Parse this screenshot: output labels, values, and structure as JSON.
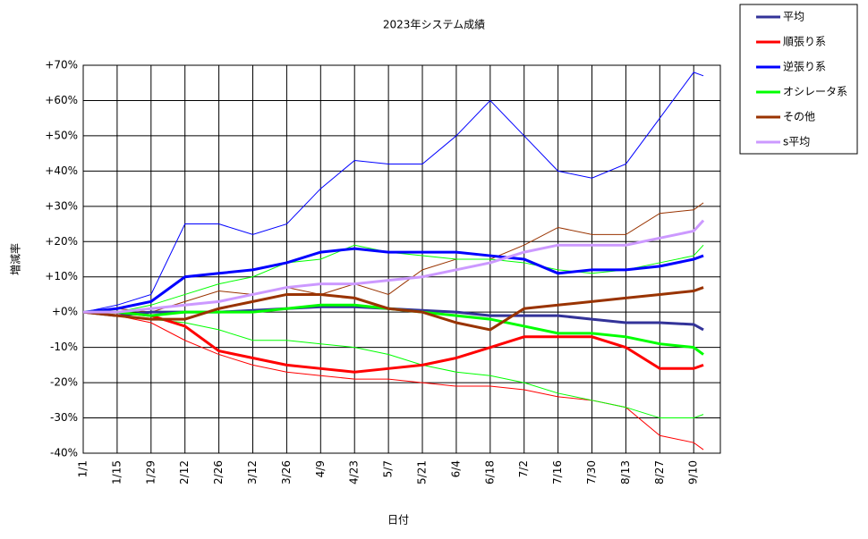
{
  "chart_data": {
    "type": "line",
    "title": "2023年システム成績",
    "xlabel": "日付",
    "ylabel": "増減率",
    "x": [
      0,
      14,
      28,
      42,
      56,
      70,
      84,
      98,
      112,
      126,
      140,
      154,
      168,
      182,
      196,
      210,
      224,
      238,
      252,
      256
    ],
    "xlim": [
      0,
      263
    ],
    "xticks": [
      {
        "value": 0,
        "label": "1/1"
      },
      {
        "value": 14,
        "label": "1/15"
      },
      {
        "value": 28,
        "label": "1/29"
      },
      {
        "value": 42,
        "label": "2/12"
      },
      {
        "value": 56,
        "label": "2/26"
      },
      {
        "value": 70,
        "label": "3/12"
      },
      {
        "value": 84,
        "label": "3/26"
      },
      {
        "value": 98,
        "label": "4/9"
      },
      {
        "value": 112,
        "label": "4/23"
      },
      {
        "value": 126,
        "label": "5/7"
      },
      {
        "value": 140,
        "label": "5/21"
      },
      {
        "value": 154,
        "label": "6/4"
      },
      {
        "value": 168,
        "label": "6/18"
      },
      {
        "value": 182,
        "label": "7/2"
      },
      {
        "value": 196,
        "label": "7/16"
      },
      {
        "value": 210,
        "label": "7/30"
      },
      {
        "value": 224,
        "label": "8/13"
      },
      {
        "value": 238,
        "label": "8/27"
      },
      {
        "value": 252,
        "label": "9/10"
      }
    ],
    "ylim": [
      -40,
      70
    ],
    "yticks": [
      {
        "value": -40,
        "label": "-40%"
      },
      {
        "value": -30,
        "label": "-30%"
      },
      {
        "value": -20,
        "label": "-20%"
      },
      {
        "value": -10,
        "label": "-10%"
      },
      {
        "value": 0,
        "label": "+0%"
      },
      {
        "value": 10,
        "label": "+10%"
      },
      {
        "value": 20,
        "label": "+20%"
      },
      {
        "value": 30,
        "label": "+30%"
      },
      {
        "value": 40,
        "label": "+40%"
      },
      {
        "value": 50,
        "label": "+50%"
      },
      {
        "value": 60,
        "label": "+60%"
      },
      {
        "value": 70,
        "label": "+70%"
      }
    ],
    "grid": true,
    "legend": "right",
    "series": [
      {
        "color": "#0000ff",
        "line_width": 1,
        "values": [
          0,
          2,
          5,
          25,
          25,
          22,
          25,
          35,
          43,
          42,
          42,
          50,
          60,
          50,
          40,
          38,
          42,
          55,
          68,
          67
        ]
      },
      {
        "color": "#ff0000",
        "line_width": 1,
        "values": [
          0,
          -1,
          -3,
          -8,
          -12,
          -15,
          -17,
          -18,
          -19,
          -19,
          -20,
          -21,
          -21,
          -22,
          -24,
          -25,
          -27,
          -35,
          -37,
          -39
        ]
      },
      {
        "color": "#993300",
        "line_width": 1,
        "values": [
          0,
          1,
          0,
          3,
          6,
          5,
          7,
          5,
          8,
          5,
          12,
          15,
          15,
          19,
          24,
          22,
          22,
          28,
          29,
          31
        ]
      },
      {
        "color": "#00ff00",
        "line_width": 1,
        "values": [
          0,
          -1,
          -2,
          -3,
          -5,
          -8,
          -8,
          -9,
          -10,
          -12,
          -15,
          -17,
          -18,
          -20,
          -23,
          -25,
          -27,
          -30,
          -30,
          -29
        ]
      },
      {
        "color": "#00ff00",
        "line_width": 1,
        "values": [
          0,
          0,
          2,
          5,
          8,
          10,
          14,
          15,
          19,
          17,
          16,
          15,
          15,
          14,
          12,
          11,
          12,
          14,
          16,
          19
        ]
      },
      {
        "name": "平均",
        "color": "#333399",
        "line_width": 3,
        "values": [
          0,
          -1,
          0,
          0,
          0,
          0.5,
          1,
          1.5,
          1.5,
          1,
          0.5,
          0,
          -1,
          -1,
          -1,
          -2,
          -3,
          -3,
          -3.5,
          -5
        ]
      },
      {
        "name": "順張り系",
        "color": "#ff0000",
        "line_width": 3,
        "values": [
          0,
          0,
          -1,
          -4,
          -11,
          -13,
          -15,
          -16,
          -17,
          -16,
          -15,
          -13,
          -10,
          -7,
          -7,
          -7,
          -10,
          -16,
          -16,
          -15
        ]
      },
      {
        "name": "逆張り系",
        "color": "#0000ff",
        "line_width": 3,
        "values": [
          0,
          1,
          3,
          10,
          11,
          12,
          14,
          17,
          18,
          17,
          17,
          17,
          16,
          15,
          11,
          12,
          12,
          13,
          15,
          16
        ]
      },
      {
        "name": "オシレータ系",
        "color": "#00ff00",
        "line_width": 3,
        "values": [
          0,
          0,
          -1,
          0,
          0,
          0,
          1,
          2,
          2,
          1,
          0,
          -1,
          -2,
          -4,
          -6,
          -6,
          -7,
          -9,
          -10,
          -12
        ]
      },
      {
        "name": "その他",
        "color": "#993300",
        "line_width": 3,
        "values": [
          0,
          -1,
          -2,
          -2,
          1,
          3,
          5,
          5,
          4,
          1,
          0,
          -3,
          -5,
          1,
          2,
          3,
          4,
          5,
          6,
          7
        ]
      },
      {
        "name": "s平均",
        "color": "#cc99ff",
        "line_width": 3,
        "values": [
          0,
          0,
          1,
          2,
          3,
          5,
          7,
          8,
          8,
          9,
          10,
          12,
          14,
          17,
          19,
          19,
          19,
          21,
          23,
          26
        ]
      }
    ]
  }
}
